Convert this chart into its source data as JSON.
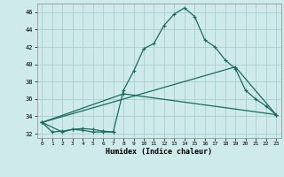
{
  "xlabel": "Humidex (Indice chaleur)",
  "background_color": "#ceeaea",
  "grid_color": "#aacfcf",
  "line_color": "#1a6b5e",
  "xlim": [
    -0.5,
    23.5
  ],
  "ylim": [
    31.5,
    47.0
  ],
  "xticks": [
    0,
    1,
    2,
    3,
    4,
    5,
    6,
    7,
    8,
    9,
    10,
    11,
    12,
    13,
    14,
    15,
    16,
    17,
    18,
    19,
    20,
    21,
    22,
    23
  ],
  "yticks": [
    32,
    34,
    36,
    38,
    40,
    42,
    44,
    46
  ],
  "line1_x": [
    0,
    1,
    2,
    3,
    4,
    5,
    6,
    7
  ],
  "line1_y": [
    33.3,
    32.2,
    32.3,
    32.5,
    32.4,
    32.2,
    32.2,
    32.2
  ],
  "line2_x": [
    0,
    8,
    23
  ],
  "line2_y": [
    33.3,
    36.6,
    34.2
  ],
  "line3_x": [
    0,
    19,
    23
  ],
  "line3_y": [
    33.3,
    39.7,
    34.2
  ],
  "line4_x": [
    0,
    2,
    3,
    4,
    5,
    6,
    7,
    8,
    9,
    10,
    11,
    12,
    13,
    14,
    15,
    16,
    17,
    18,
    19,
    20,
    21,
    22,
    23
  ],
  "line4_y": [
    33.3,
    32.2,
    32.5,
    32.6,
    32.5,
    32.3,
    32.2,
    37.0,
    39.2,
    41.8,
    42.4,
    44.5,
    45.8,
    46.5,
    45.5,
    42.8,
    42.0,
    40.5,
    39.5,
    37.0,
    36.0,
    35.2,
    34.2
  ]
}
